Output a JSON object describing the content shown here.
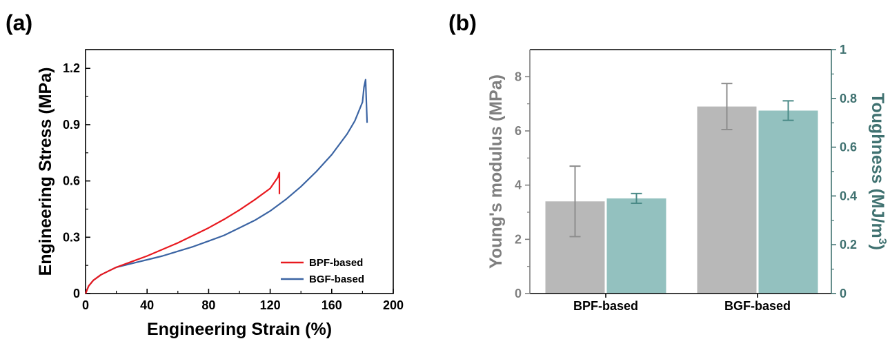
{
  "panels": {
    "a": {
      "label": "(a)"
    },
    "b": {
      "label": "(b)"
    }
  },
  "colors": {
    "bpf_line": "#e8191f",
    "bgf_line": "#3b64a3",
    "modulus_bar": "#b8b8b8",
    "modulus_err": "#8d8d8d",
    "toughness_bar": "#93c1bf",
    "toughness_err": "#4a8a87",
    "left_axis_b": "#7f7f7f",
    "right_axis_b": "#3f7170"
  },
  "chart_data": [
    {
      "type": "line",
      "xlabel": "Engineering Strain (%)",
      "ylabel": "Engineering Stress (MPa)",
      "xlim": [
        0,
        200
      ],
      "ylim": [
        0,
        1.3
      ],
      "xticks": [
        "0",
        "40",
        "80",
        "120",
        "160",
        "200"
      ],
      "yticks": [
        "0",
        "0.3",
        "0.6",
        "0.9",
        "1.2"
      ],
      "legend_position": "bottom-right",
      "series": [
        {
          "name": "BPF-based",
          "x": [
            0,
            2,
            5,
            10,
            15,
            20,
            30,
            40,
            50,
            60,
            70,
            80,
            90,
            100,
            110,
            120,
            125,
            126,
            126
          ],
          "y": [
            0,
            0.04,
            0.07,
            0.1,
            0.12,
            0.14,
            0.17,
            0.2,
            0.235,
            0.27,
            0.31,
            0.35,
            0.395,
            0.445,
            0.5,
            0.56,
            0.62,
            0.645,
            0.53
          ]
        },
        {
          "name": "BGF-based",
          "x": [
            0,
            2,
            5,
            10,
            15,
            20,
            30,
            40,
            50,
            60,
            70,
            80,
            90,
            100,
            110,
            120,
            130,
            140,
            150,
            160,
            170,
            175,
            180,
            181,
            182,
            183
          ],
          "y": [
            0,
            0.04,
            0.07,
            0.1,
            0.12,
            0.14,
            0.16,
            0.18,
            0.2,
            0.225,
            0.25,
            0.28,
            0.31,
            0.35,
            0.39,
            0.44,
            0.5,
            0.57,
            0.65,
            0.74,
            0.85,
            0.92,
            1.02,
            1.1,
            1.14,
            0.91
          ]
        }
      ]
    },
    {
      "type": "bar",
      "categories": [
        "BPF-based",
        "BGF-based"
      ],
      "ylabel": "Young's modulus (MPa)",
      "y2label": "Toughness (MJ/m3)",
      "y2label_main": "Toughness (MJ/m",
      "y2label_sup": "3",
      "y2label_close": ")",
      "ylim": [
        0,
        9
      ],
      "y2lim": [
        0,
        1
      ],
      "yticks": [
        "0",
        "2",
        "4",
        "6",
        "8"
      ],
      "y2ticks": [
        "0",
        "0.2",
        "0.4",
        "0.6",
        "0.8",
        "1"
      ],
      "series": [
        {
          "name": "Young's modulus",
          "axis": "left",
          "values": [
            3.4,
            6.9
          ],
          "errors": [
            1.3,
            0.85
          ]
        },
        {
          "name": "Toughness",
          "axis": "right",
          "values": [
            0.39,
            0.75
          ],
          "errors": [
            0.02,
            0.04
          ]
        }
      ]
    }
  ]
}
